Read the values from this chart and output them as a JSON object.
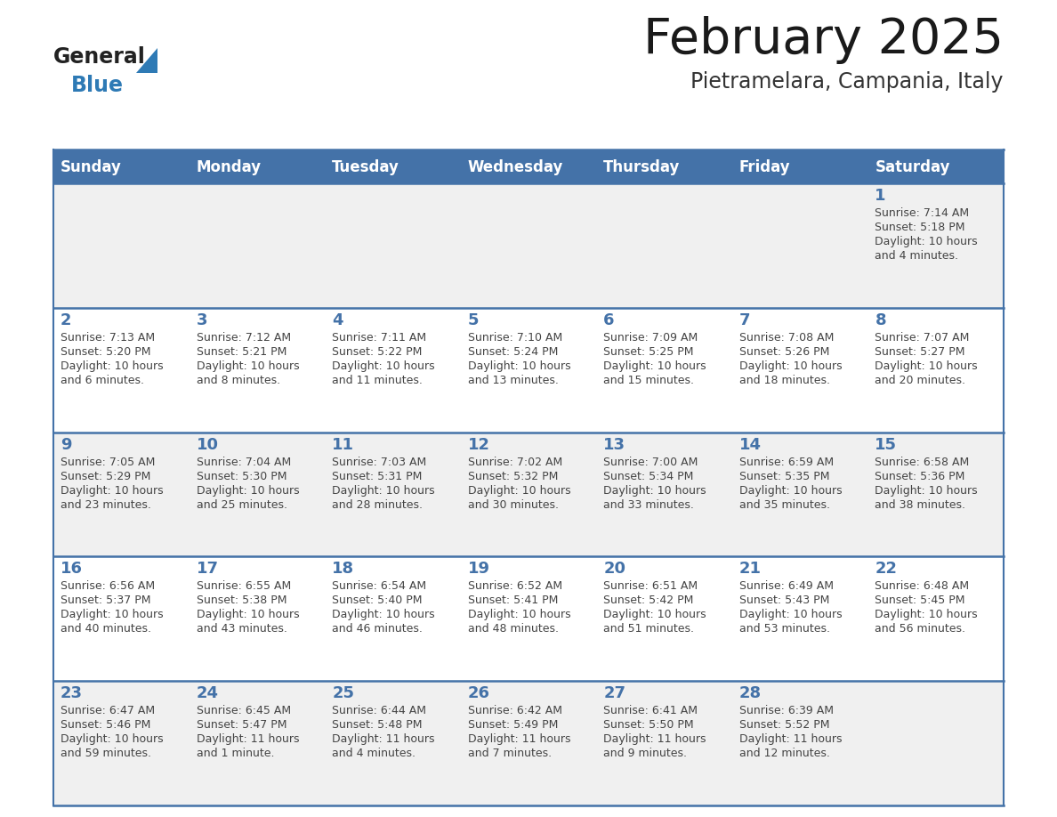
{
  "title": "February 2025",
  "subtitle": "Pietramelara, Campania, Italy",
  "header_color": "#4472a8",
  "header_text_color": "#ffffff",
  "day_names": [
    "Sunday",
    "Monday",
    "Tuesday",
    "Wednesday",
    "Thursday",
    "Friday",
    "Saturday"
  ],
  "bg_color": "#ffffff",
  "cell_bg_light": "#f0f0f0",
  "cell_bg_white": "#ffffff",
  "date_color": "#4472a8",
  "text_color": "#444444",
  "border_color": "#4472a8",
  "days": [
    {
      "date": 1,
      "col": 6,
      "row": 0,
      "sunrise": "7:14 AM",
      "sunset": "5:18 PM",
      "daylight_line1": "Daylight: 10 hours",
      "daylight_line2": "and 4 minutes."
    },
    {
      "date": 2,
      "col": 0,
      "row": 1,
      "sunrise": "7:13 AM",
      "sunset": "5:20 PM",
      "daylight_line1": "Daylight: 10 hours",
      "daylight_line2": "and 6 minutes."
    },
    {
      "date": 3,
      "col": 1,
      "row": 1,
      "sunrise": "7:12 AM",
      "sunset": "5:21 PM",
      "daylight_line1": "Daylight: 10 hours",
      "daylight_line2": "and 8 minutes."
    },
    {
      "date": 4,
      "col": 2,
      "row": 1,
      "sunrise": "7:11 AM",
      "sunset": "5:22 PM",
      "daylight_line1": "Daylight: 10 hours",
      "daylight_line2": "and 11 minutes."
    },
    {
      "date": 5,
      "col": 3,
      "row": 1,
      "sunrise": "7:10 AM",
      "sunset": "5:24 PM",
      "daylight_line1": "Daylight: 10 hours",
      "daylight_line2": "and 13 minutes."
    },
    {
      "date": 6,
      "col": 4,
      "row": 1,
      "sunrise": "7:09 AM",
      "sunset": "5:25 PM",
      "daylight_line1": "Daylight: 10 hours",
      "daylight_line2": "and 15 minutes."
    },
    {
      "date": 7,
      "col": 5,
      "row": 1,
      "sunrise": "7:08 AM",
      "sunset": "5:26 PM",
      "daylight_line1": "Daylight: 10 hours",
      "daylight_line2": "and 18 minutes."
    },
    {
      "date": 8,
      "col": 6,
      "row": 1,
      "sunrise": "7:07 AM",
      "sunset": "5:27 PM",
      "daylight_line1": "Daylight: 10 hours",
      "daylight_line2": "and 20 minutes."
    },
    {
      "date": 9,
      "col": 0,
      "row": 2,
      "sunrise": "7:05 AM",
      "sunset": "5:29 PM",
      "daylight_line1": "Daylight: 10 hours",
      "daylight_line2": "and 23 minutes."
    },
    {
      "date": 10,
      "col": 1,
      "row": 2,
      "sunrise": "7:04 AM",
      "sunset": "5:30 PM",
      "daylight_line1": "Daylight: 10 hours",
      "daylight_line2": "and 25 minutes."
    },
    {
      "date": 11,
      "col": 2,
      "row": 2,
      "sunrise": "7:03 AM",
      "sunset": "5:31 PM",
      "daylight_line1": "Daylight: 10 hours",
      "daylight_line2": "and 28 minutes."
    },
    {
      "date": 12,
      "col": 3,
      "row": 2,
      "sunrise": "7:02 AM",
      "sunset": "5:32 PM",
      "daylight_line1": "Daylight: 10 hours",
      "daylight_line2": "and 30 minutes."
    },
    {
      "date": 13,
      "col": 4,
      "row": 2,
      "sunrise": "7:00 AM",
      "sunset": "5:34 PM",
      "daylight_line1": "Daylight: 10 hours",
      "daylight_line2": "and 33 minutes."
    },
    {
      "date": 14,
      "col": 5,
      "row": 2,
      "sunrise": "6:59 AM",
      "sunset": "5:35 PM",
      "daylight_line1": "Daylight: 10 hours",
      "daylight_line2": "and 35 minutes."
    },
    {
      "date": 15,
      "col": 6,
      "row": 2,
      "sunrise": "6:58 AM",
      "sunset": "5:36 PM",
      "daylight_line1": "Daylight: 10 hours",
      "daylight_line2": "and 38 minutes."
    },
    {
      "date": 16,
      "col": 0,
      "row": 3,
      "sunrise": "6:56 AM",
      "sunset": "5:37 PM",
      "daylight_line1": "Daylight: 10 hours",
      "daylight_line2": "and 40 minutes."
    },
    {
      "date": 17,
      "col": 1,
      "row": 3,
      "sunrise": "6:55 AM",
      "sunset": "5:38 PM",
      "daylight_line1": "Daylight: 10 hours",
      "daylight_line2": "and 43 minutes."
    },
    {
      "date": 18,
      "col": 2,
      "row": 3,
      "sunrise": "6:54 AM",
      "sunset": "5:40 PM",
      "daylight_line1": "Daylight: 10 hours",
      "daylight_line2": "and 46 minutes."
    },
    {
      "date": 19,
      "col": 3,
      "row": 3,
      "sunrise": "6:52 AM",
      "sunset": "5:41 PM",
      "daylight_line1": "Daylight: 10 hours",
      "daylight_line2": "and 48 minutes."
    },
    {
      "date": 20,
      "col": 4,
      "row": 3,
      "sunrise": "6:51 AM",
      "sunset": "5:42 PM",
      "daylight_line1": "Daylight: 10 hours",
      "daylight_line2": "and 51 minutes."
    },
    {
      "date": 21,
      "col": 5,
      "row": 3,
      "sunrise": "6:49 AM",
      "sunset": "5:43 PM",
      "daylight_line1": "Daylight: 10 hours",
      "daylight_line2": "and 53 minutes."
    },
    {
      "date": 22,
      "col": 6,
      "row": 3,
      "sunrise": "6:48 AM",
      "sunset": "5:45 PM",
      "daylight_line1": "Daylight: 10 hours",
      "daylight_line2": "and 56 minutes."
    },
    {
      "date": 23,
      "col": 0,
      "row": 4,
      "sunrise": "6:47 AM",
      "sunset": "5:46 PM",
      "daylight_line1": "Daylight: 10 hours",
      "daylight_line2": "and 59 minutes."
    },
    {
      "date": 24,
      "col": 1,
      "row": 4,
      "sunrise": "6:45 AM",
      "sunset": "5:47 PM",
      "daylight_line1": "Daylight: 11 hours",
      "daylight_line2": "and 1 minute."
    },
    {
      "date": 25,
      "col": 2,
      "row": 4,
      "sunrise": "6:44 AM",
      "sunset": "5:48 PM",
      "daylight_line1": "Daylight: 11 hours",
      "daylight_line2": "and 4 minutes."
    },
    {
      "date": 26,
      "col": 3,
      "row": 4,
      "sunrise": "6:42 AM",
      "sunset": "5:49 PM",
      "daylight_line1": "Daylight: 11 hours",
      "daylight_line2": "and 7 minutes."
    },
    {
      "date": 27,
      "col": 4,
      "row": 4,
      "sunrise": "6:41 AM",
      "sunset": "5:50 PM",
      "daylight_line1": "Daylight: 11 hours",
      "daylight_line2": "and 9 minutes."
    },
    {
      "date": 28,
      "col": 5,
      "row": 4,
      "sunrise": "6:39 AM",
      "sunset": "5:52 PM",
      "daylight_line1": "Daylight: 11 hours",
      "daylight_line2": "and 12 minutes."
    }
  ],
  "logo_triangle_color": "#2e7ab5",
  "title_fontsize": 40,
  "subtitle_fontsize": 17,
  "header_fontsize": 12,
  "date_fontsize": 13,
  "cell_fontsize": 9
}
